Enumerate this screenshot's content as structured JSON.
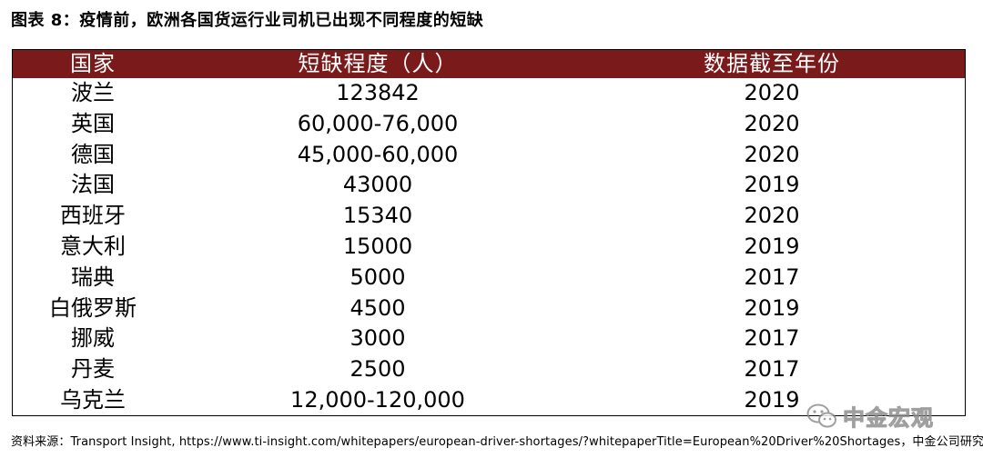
{
  "title": "图表 8：疫情前，欧洲各国货运行业司机已出现不同程度的短缺",
  "colors": {
    "header_bg": "#7a1a1a",
    "header_text": "#ffffff"
  },
  "table": {
    "headers": [
      "国家",
      "短缺程度（人）",
      "数据截至年份"
    ],
    "rows": [
      {
        "country": "波兰",
        "shortage": "123842",
        "year": "2020"
      },
      {
        "country": "英国",
        "shortage": "60,000-76,000",
        "year": "2020"
      },
      {
        "country": "德国",
        "shortage": "45,000-60,000",
        "year": "2020"
      },
      {
        "country": "法国",
        "shortage": "43000",
        "year": "2019"
      },
      {
        "country": "西班牙",
        "shortage": "15340",
        "year": "2020"
      },
      {
        "country": "意大利",
        "shortage": "15000",
        "year": "2019"
      },
      {
        "country": "瑞典",
        "shortage": "5000",
        "year": "2017"
      },
      {
        "country": "白俄罗斯",
        "shortage": "4500",
        "year": "2019"
      },
      {
        "country": "挪威",
        "shortage": "3000",
        "year": "2017"
      },
      {
        "country": "丹麦",
        "shortage": "2500",
        "year": "2017"
      },
      {
        "country": "乌克兰",
        "shortage": "12,000-120,000",
        "year": "2019"
      }
    ]
  },
  "source": "资料来源：Transport Insight, https://www.ti-insight.com/whitepapers/european-driver-shortages/?whitepaperTitle=European%20Driver%20Shortages，中金公司研究部",
  "watermark": {
    "icon": "wechat-icon",
    "text": "中金宏观"
  }
}
